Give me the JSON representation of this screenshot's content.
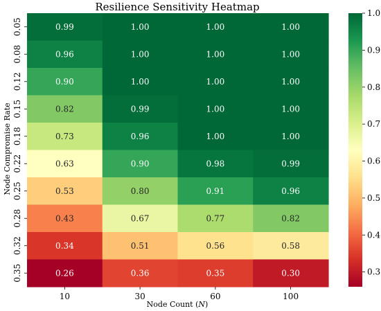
{
  "chart_data": {
    "type": "heatmap",
    "title": "Resilience Sensitivity Heatmap",
    "xlabel_prefix": "Node Count (",
    "xlabel_italic": "N",
    "xlabel_suffix": ")",
    "ylabel": "Node Compromise Rate",
    "x_categories": [
      "10",
      "30",
      "60",
      "100"
    ],
    "y_categories": [
      "0.05",
      "0.08",
      "0.12",
      "0.15",
      "0.18",
      "0.22",
      "0.25",
      "0.28",
      "0.32",
      "0.35"
    ],
    "values": [
      [
        0.99,
        1.0,
        1.0,
        1.0
      ],
      [
        0.96,
        1.0,
        1.0,
        1.0
      ],
      [
        0.9,
        1.0,
        1.0,
        1.0
      ],
      [
        0.82,
        0.99,
        1.0,
        1.0
      ],
      [
        0.73,
        0.96,
        1.0,
        1.0
      ],
      [
        0.63,
        0.9,
        0.98,
        0.99
      ],
      [
        0.53,
        0.8,
        0.91,
        0.96
      ],
      [
        0.43,
        0.67,
        0.77,
        0.82
      ],
      [
        0.34,
        0.51,
        0.56,
        0.58
      ],
      [
        0.26,
        0.36,
        0.35,
        0.3
      ]
    ],
    "cell_labels": [
      [
        "0.99",
        "1.00",
        "1.00",
        "1.00"
      ],
      [
        "0.96",
        "1.00",
        "1.00",
        "1.00"
      ],
      [
        "0.90",
        "1.00",
        "1.00",
        "1.00"
      ],
      [
        "0.82",
        "0.99",
        "1.00",
        "1.00"
      ],
      [
        "0.73",
        "0.96",
        "1.00",
        "1.00"
      ],
      [
        "0.63",
        "0.90",
        "0.98",
        "0.99"
      ],
      [
        "0.53",
        "0.80",
        "0.91",
        "0.96"
      ],
      [
        "0.43",
        "0.67",
        "0.77",
        "0.82"
      ],
      [
        "0.34",
        "0.51",
        "0.56",
        "0.58"
      ],
      [
        "0.26",
        "0.36",
        "0.35",
        "0.30"
      ]
    ],
    "colormap": "RdYlGn",
    "vmin": 0.26,
    "vmax": 1.0,
    "colorbar_ticks": [
      0.3,
      0.4,
      0.5,
      0.6,
      0.7,
      0.8,
      0.9,
      1.0
    ],
    "colorbar_tick_labels": [
      "0.3",
      "0.4",
      "0.5",
      "0.6",
      "0.7",
      "0.8",
      "0.9",
      "1.0"
    ],
    "colorbar_position": "right",
    "grid": false
  }
}
